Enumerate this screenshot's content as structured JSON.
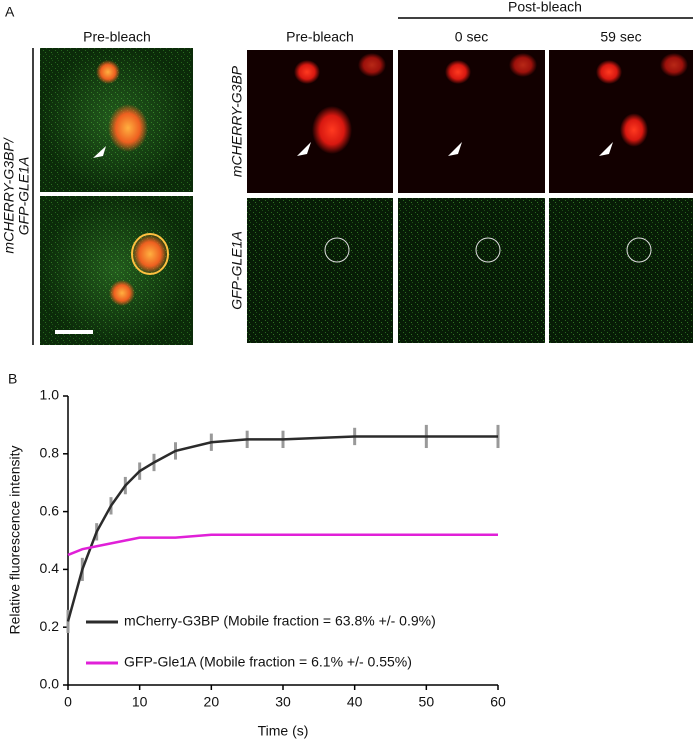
{
  "panel_a": {
    "label": "A",
    "left_header": "Pre-bleach",
    "left_row_label_1": "mCHERRY-G3BP/",
    "left_row_label_2": "GFP-GLE1A",
    "post_bleach": "Post-bleach",
    "columns": [
      "Pre-bleach",
      "0 sec",
      "59 sec"
    ],
    "rows": [
      "mCHERRY-G3BP",
      "GFP-GLE1A"
    ]
  },
  "chart_data": {
    "type": "line",
    "panel_label": "B",
    "x_label": "Time (s)",
    "y_label": "Relative fluorescence intensity",
    "x": [
      0,
      2,
      4,
      6,
      8,
      10,
      12,
      15,
      20,
      25,
      30,
      40,
      50,
      60
    ],
    "series": [
      {
        "name": "mCherry-G3BP (Mobile fraction = 63.8% +/- 0.9%)",
        "color": "#2b2b2b",
        "values": [
          0.22,
          0.4,
          0.53,
          0.62,
          0.69,
          0.74,
          0.77,
          0.81,
          0.84,
          0.85,
          0.85,
          0.86,
          0.86,
          0.86
        ],
        "error": [
          0.04,
          0.04,
          0.03,
          0.03,
          0.03,
          0.03,
          0.03,
          0.03,
          0.03,
          0.03,
          0.03,
          0.03,
          0.04,
          0.04
        ]
      },
      {
        "name": "GFP-Gle1A (Mobile fraction = 6.1% +/- 0.55%)",
        "color": "#e020d8",
        "values": [
          0.45,
          0.47,
          0.48,
          0.49,
          0.5,
          0.51,
          0.51,
          0.51,
          0.52,
          0.52,
          0.52,
          0.52,
          0.52,
          0.52
        ]
      }
    ],
    "xlim": [
      0,
      60
    ],
    "ylim": [
      0,
      1
    ],
    "xticks": [
      0,
      10,
      20,
      30,
      40,
      50,
      60
    ],
    "yticks": [
      {
        "value": 0,
        "label": "0.0"
      },
      0.2,
      0.4,
      0.6,
      0.8,
      {
        "value": 1,
        "label": "1.0"
      }
    ]
  }
}
